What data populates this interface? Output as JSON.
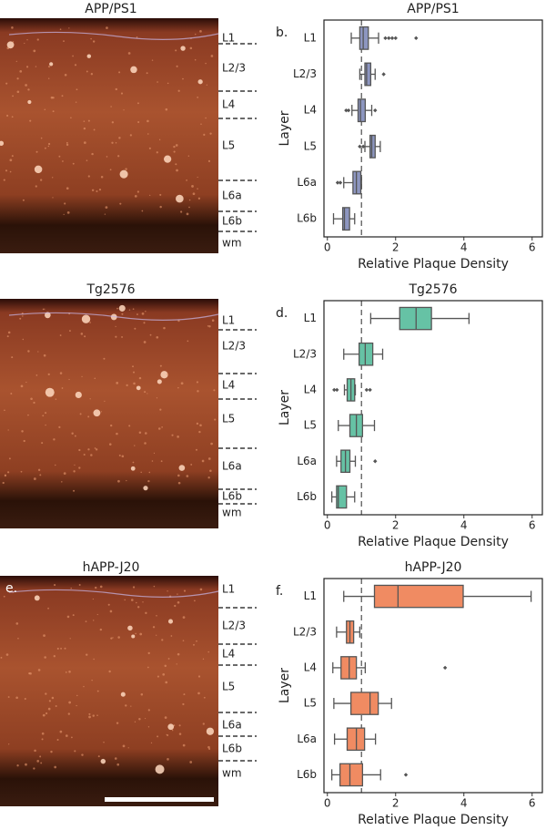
{
  "images": [
    {
      "title": "APP/PS1",
      "layers": [
        "L1",
        "L2/3",
        "L4",
        "L5",
        "L6a",
        "L6b",
        "wm"
      ]
    },
    {
      "title": "Tg2576",
      "layers": [
        "L1",
        "L2/3",
        "L4",
        "L5",
        "L6a",
        "L6b",
        "wm"
      ]
    },
    {
      "title": "hAPP-J20",
      "panel_label": "e.",
      "layers": [
        "L1",
        "L2/3",
        "L4",
        "L5",
        "L6a",
        "L6b",
        "wm"
      ]
    }
  ],
  "chart_data": [
    {
      "type": "box",
      "title": "APP/PS1",
      "panel_label": "b.",
      "xlabel": "Relative Plaque Density",
      "ylabel": "Layer",
      "color": "#8d96c0",
      "xlim": [
        -0.1,
        6.3
      ],
      "xticks": [
        0,
        2,
        4,
        6
      ],
      "reference_line": 1,
      "categories": [
        "L1",
        "L2/3",
        "L4",
        "L5",
        "L6a",
        "L6b"
      ],
      "boxes": [
        {
          "whislo": 0.7,
          "q1": 0.95,
          "med": 1.05,
          "q3": 1.2,
          "whishi": 1.5,
          "fliers": [
            1.7,
            1.8,
            1.9,
            2.0,
            2.6
          ]
        },
        {
          "whislo": 0.95,
          "q1": 1.1,
          "med": 1.15,
          "q3": 1.27,
          "whishi": 1.4,
          "fliers": [
            1.65
          ]
        },
        {
          "whislo": 0.72,
          "q1": 0.9,
          "med": 0.97,
          "q3": 1.11,
          "whishi": 1.3,
          "fliers": [
            0.55,
            0.62,
            1.4
          ]
        },
        {
          "whislo": 1.1,
          "q1": 1.25,
          "med": 1.3,
          "q3": 1.4,
          "whishi": 1.55,
          "fliers": [
            0.95,
            1.05
          ]
        },
        {
          "whislo": 0.48,
          "q1": 0.75,
          "med": 0.85,
          "q3": 0.98,
          "whishi": 1.0,
          "fliers": [
            0.3,
            0.38
          ]
        },
        {
          "whislo": 0.18,
          "q1": 0.45,
          "med": 0.5,
          "q3": 0.65,
          "whishi": 0.8,
          "fliers": []
        }
      ]
    },
    {
      "type": "box",
      "title": "Tg2576",
      "panel_label": "d.",
      "xlabel": "Relative Plaque Density",
      "ylabel": "Layer",
      "color": "#66c2a5",
      "xlim": [
        -0.1,
        6.3
      ],
      "xticks": [
        0,
        2,
        4,
        6
      ],
      "reference_line": 1,
      "categories": [
        "L1",
        "L2/3",
        "L4",
        "L5",
        "L6a",
        "L6b"
      ],
      "boxes": [
        {
          "whislo": 1.27,
          "q1": 2.12,
          "med": 2.6,
          "q3": 3.05,
          "whishi": 4.15,
          "fliers": []
        },
        {
          "whislo": 0.48,
          "q1": 0.93,
          "med": 1.11,
          "q3": 1.33,
          "whishi": 1.62,
          "fliers": []
        },
        {
          "whislo": 0.5,
          "q1": 0.58,
          "med": 0.69,
          "q3": 0.8,
          "whishi": 0.82,
          "fliers": [
            0.2,
            0.28,
            1.15,
            1.25
          ]
        },
        {
          "whislo": 0.32,
          "q1": 0.66,
          "med": 0.85,
          "q3": 1.03,
          "whishi": 1.38,
          "fliers": []
        },
        {
          "whislo": 0.27,
          "q1": 0.4,
          "med": 0.53,
          "q3": 0.66,
          "whishi": 0.82,
          "fliers": [
            1.4
          ]
        },
        {
          "whislo": 0.13,
          "q1": 0.27,
          "med": 0.32,
          "q3": 0.56,
          "whishi": 0.8,
          "fliers": []
        }
      ]
    },
    {
      "type": "box",
      "title": "hAPP-J20",
      "panel_label": "f.",
      "xlabel": "Relative Plaque Density",
      "ylabel": "Layer",
      "color": "#f08b62",
      "xlim": [
        -0.1,
        6.3
      ],
      "xticks": [
        0,
        2,
        4,
        6
      ],
      "reference_line": 1,
      "categories": [
        "L1",
        "L2/3",
        "L4",
        "L5",
        "L6a",
        "L6b"
      ],
      "boxes": [
        {
          "whislo": 0.48,
          "q1": 1.38,
          "med": 2.07,
          "q3": 3.98,
          "whishi": 5.97,
          "fliers": []
        },
        {
          "whislo": 0.27,
          "q1": 0.56,
          "med": 0.66,
          "q3": 0.77,
          "whishi": 0.95,
          "fliers": []
        },
        {
          "whislo": 0.16,
          "q1": 0.4,
          "med": 0.64,
          "q3": 0.85,
          "whishi": 1.11,
          "fliers": [
            3.45
          ]
        },
        {
          "whislo": 0.19,
          "q1": 0.69,
          "med": 1.25,
          "q3": 1.49,
          "whishi": 1.88,
          "fliers": []
        },
        {
          "whislo": 0.21,
          "q1": 0.58,
          "med": 0.85,
          "q3": 1.09,
          "whishi": 1.41,
          "fliers": []
        },
        {
          "whislo": 0.13,
          "q1": 0.37,
          "med": 0.66,
          "q3": 1.03,
          "whishi": 1.56,
          "fliers": [
            2.3
          ]
        }
      ]
    }
  ]
}
